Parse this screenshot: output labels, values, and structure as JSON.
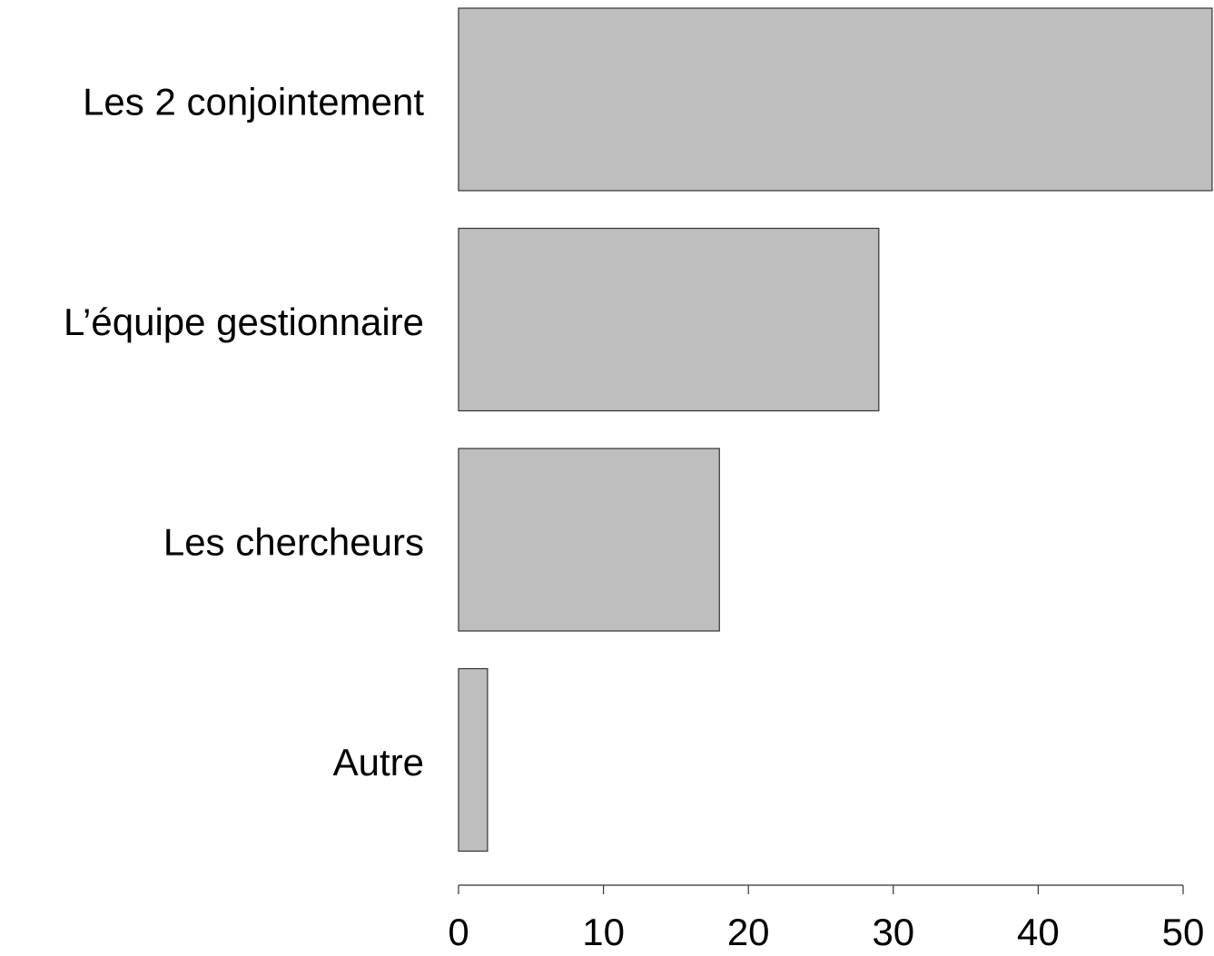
{
  "chart_data": {
    "type": "barh",
    "categories": [
      "Les 2 conjointement",
      "L’équipe gestionnaire",
      "Les chercheurs",
      "Autre"
    ],
    "values": [
      52,
      29,
      18,
      2
    ],
    "color": "#bebebe",
    "xlim": [
      0,
      50
    ],
    "xticks": [
      0,
      10,
      20,
      30,
      40,
      50
    ],
    "grid": false
  }
}
